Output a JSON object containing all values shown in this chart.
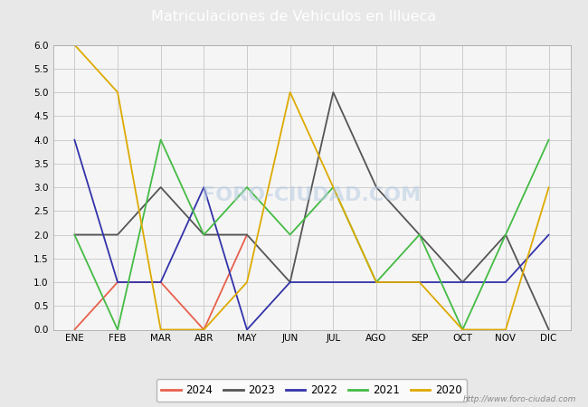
{
  "title": "Matriculaciones de Vehiculos en Illueca",
  "title_bg_color": "#4d7ebf",
  "title_text_color": "#ffffff",
  "months": [
    "ENE",
    "FEB",
    "MAR",
    "ABR",
    "MAY",
    "JUN",
    "JUL",
    "AGO",
    "SEP",
    "OCT",
    "NOV",
    "DIC"
  ],
  "ylim": [
    0.0,
    6.0
  ],
  "yticks": [
    0.0,
    0.5,
    1.0,
    1.5,
    2.0,
    2.5,
    3.0,
    3.5,
    4.0,
    4.5,
    5.0,
    5.5,
    6.0
  ],
  "series": {
    "2024": {
      "color": "#e8604c",
      "values": [
        0,
        1,
        1,
        0,
        2,
        null,
        null,
        null,
        null,
        null,
        null,
        null
      ]
    },
    "2023": {
      "color": "#555555",
      "values": [
        2,
        2,
        3,
        2,
        2,
        1,
        5,
        3,
        2,
        1,
        2,
        0
      ]
    },
    "2022": {
      "color": "#3333aa",
      "values": [
        4,
        1,
        1,
        3,
        0,
        1,
        1,
        1,
        1,
        1,
        1,
        2
      ]
    },
    "2021": {
      "color": "#44bb44",
      "values": [
        2,
        0,
        4,
        2,
        3,
        2,
        3,
        1,
        2,
        0,
        2,
        4
      ]
    },
    "2020": {
      "color": "#ddaa00",
      "values": [
        6,
        5,
        0,
        0,
        1,
        5,
        3,
        1,
        1,
        0,
        0,
        3
      ]
    }
  },
  "legend_order": [
    "2024",
    "2023",
    "2022",
    "2021",
    "2020"
  ],
  "grid_color": "#cccccc",
  "outer_bg_color": "#e8e8e8",
  "plot_bg_color": "#f5f5f5",
  "watermark_plot": "FORO-CIUDAD.COM",
  "watermark_url": "http://www.foro-ciudad.com"
}
